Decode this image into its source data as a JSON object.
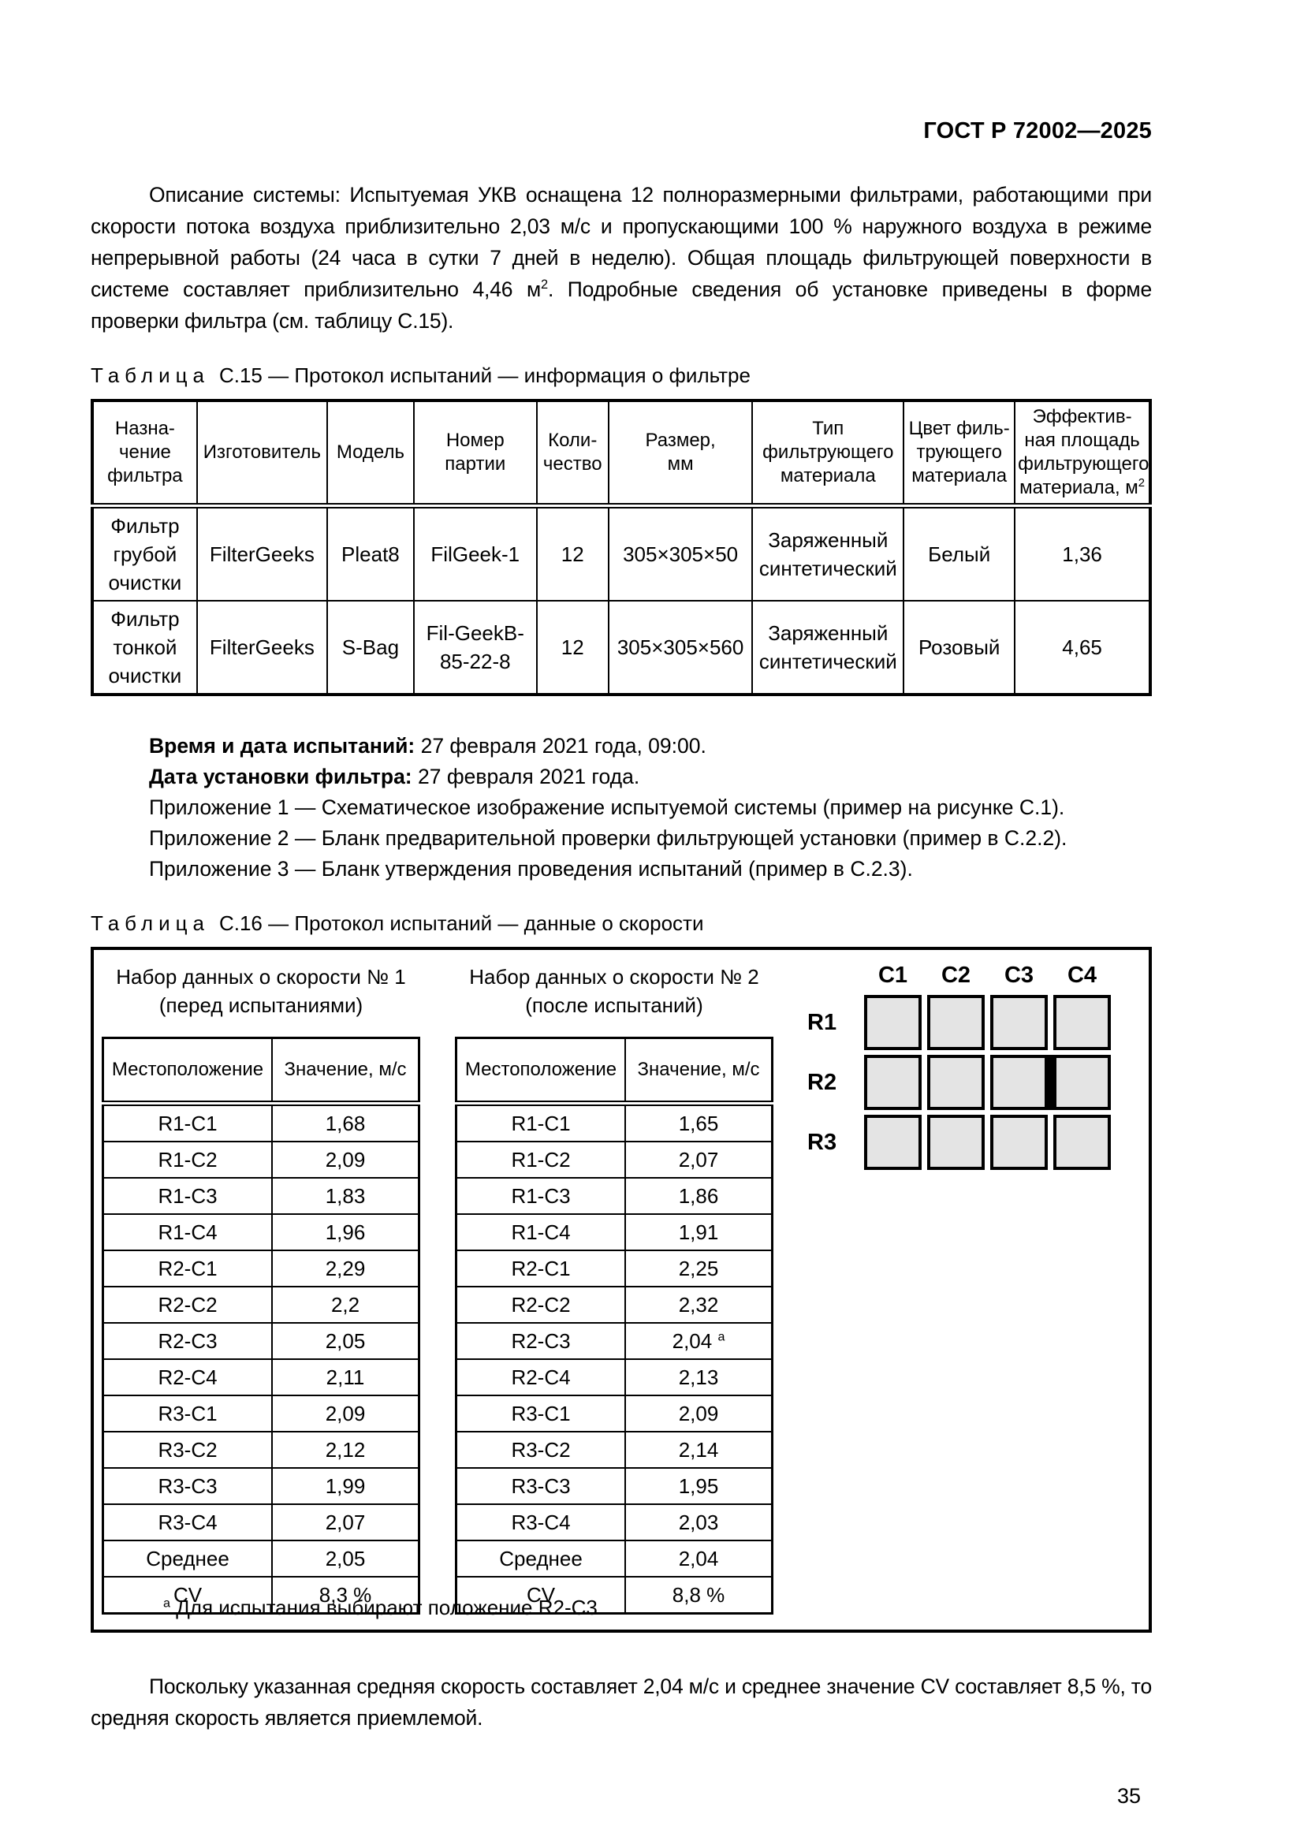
{
  "colors": {
    "text": "#000000",
    "border": "#000000",
    "grid_cell_fill": "#e4e4e4"
  },
  "page": {
    "standard_ref": "ГОСТ Р 72002—2025",
    "page_number": "35"
  },
  "intro_paragraph": {
    "text_before_sup": "Описание системы: Испытуемая УКВ оснащена 12 полноразмерными фильтрами, работающими при скорости потока воздуха приблизительно 2,03 м/с и пропускающими 100 % наружного воздуха в режиме непрерывной работы (24 часа в сутки 7 дней в неделю). Общая площадь фильтрующей поверхности в системе составляет приблизительно 4,46 м",
    "sup": "2",
    "text_after_sup": ". Подробные сведения об установке приведены в форме проверки фильтра (см. таблицу С.15)."
  },
  "table_c15": {
    "caption_label": "Таблица",
    "caption_text": "С.15 — Протокол испытаний — информация о фильтре",
    "columns": [
      {
        "text": "Назна-\nчение\nфильтра"
      },
      {
        "text": "Изготовитель"
      },
      {
        "text": "Модель"
      },
      {
        "text": "Номер\nпартии"
      },
      {
        "text": "Коли-\nчество"
      },
      {
        "text": "Размер,\nмм"
      },
      {
        "text": "Тип\nфильтрующего\nматериала"
      },
      {
        "text": "Цвет филь-\nтрующего\nматериала"
      },
      {
        "text": "Эффектив-\nная площадь\nфильтрующего\nматериала, м",
        "sup": "2"
      }
    ],
    "rows": [
      [
        "Фильтр\nгрубой\nочистки",
        "FilterGeeks",
        "Pleat8",
        "FilGeek-1",
        "12",
        "305×305×50",
        "Заряженный\nсинтетический",
        "Белый",
        "1,36"
      ],
      [
        "Фильтр\nтонкой\nочистки",
        "FilterGeeks",
        "S-Bag",
        "Fil-GeekB-\n85-22-8",
        "12",
        "305×305×560",
        "Заряженный\nсинтетический",
        "Розовый",
        "4,65"
      ]
    ]
  },
  "test_info": {
    "line1_label": "Время и дата испытаний:",
    "line1_value": " 27 февраля 2021 года, 09:00.",
    "line2_label": "Дата установки фильтра:",
    "line2_value": " 27 февраля 2021 года.",
    "annexes": [
      "Приложение 1 — Схематическое изображение испытуемой системы (пример на рисунке С.1).",
      "Приложение 2 — Бланк предварительной проверки фильтрующей установки (пример в С.2.2).",
      "Приложение 3 — Бланк утверждения проведения испытаний (пример в С.2.3)."
    ]
  },
  "table_c16": {
    "caption_label": "Таблица",
    "caption_text": "С.16 — Протокол испытаний — данные о скорости",
    "set1": {
      "title": "Набор данных о скорости № 1\n(перед испытаниями)",
      "col_headers": [
        "Местоположение",
        "Значение, м/с"
      ]
    },
    "set2": {
      "title": "Набор данных о скорости № 2\n(после испытаний)",
      "col_headers": [
        "Местоположение",
        "Значение, м/с"
      ]
    },
    "locations": [
      "R1-C1",
      "R1-C2",
      "R1-C3",
      "R1-C4",
      "R2-C1",
      "R2-C2",
      "R2-C3",
      "R2-C4",
      "R3-C1",
      "R3-C2",
      "R3-C3",
      "R3-C4",
      "Среднее",
      "CV"
    ],
    "set1_values": [
      "1,68",
      "2,09",
      "1,83",
      "1,96",
      "2,29",
      "2,2",
      "2,05",
      "2,11",
      "2,09",
      "2,12",
      "1,99",
      "2,07",
      "2,05",
      "8,3 %"
    ],
    "set2_values": [
      "1,65",
      "2,07",
      "1,86",
      "1,91",
      "2,25",
      "2,32",
      {
        "text": "2,04 ",
        "sup": "a"
      },
      "2,13",
      "2,09",
      "2,14",
      "1,95",
      "2,03",
      "2,04",
      "8,8 %"
    ],
    "footnote": {
      "sup": "a",
      "text": " Для испытания выбирают положение R2-C3."
    },
    "grid": {
      "col_labels": [
        "C1",
        "C2",
        "C3",
        "C4"
      ],
      "row_labels": [
        "R1",
        "R2",
        "R3"
      ],
      "marked_gap_row": "R2",
      "marked_gap_after_col": "C3"
    }
  },
  "closing_paragraph": "Поскольку указанная средняя скорость составляет 2,04 м/с и среднее значение CV составляет 8,5 %, то средняя скорость является приемлемой."
}
